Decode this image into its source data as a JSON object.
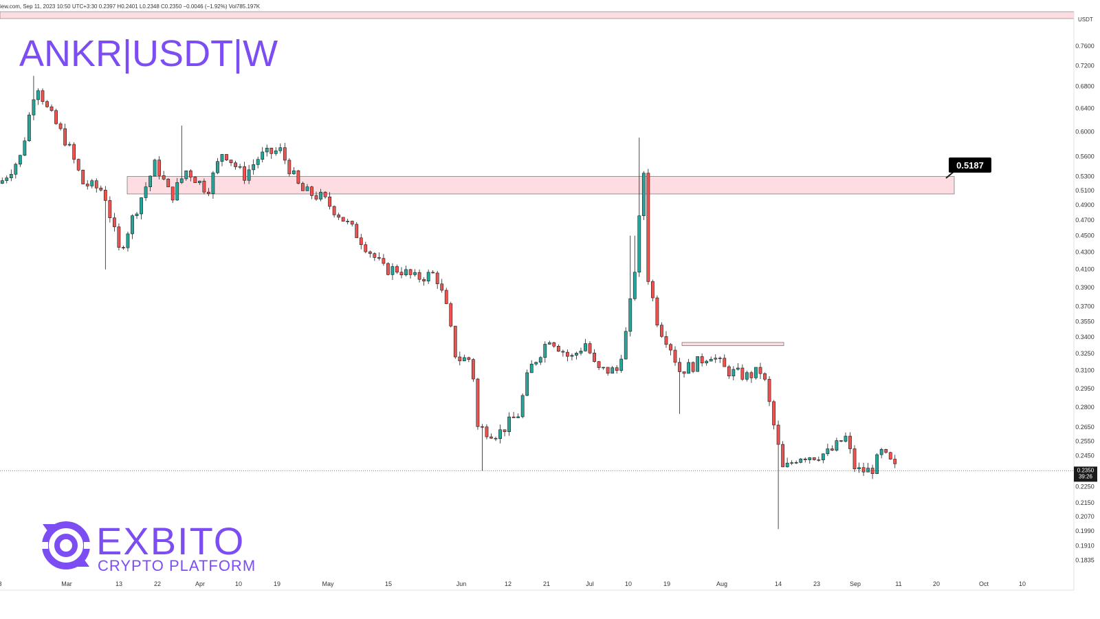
{
  "header": {
    "info_line": "iew.com, Sep 11, 2023 10:50 UTC+3:30   0.2397  H0.2401  L0.2348  C0.2350  −0.0046 (−1.92%)  Vol785.197K"
  },
  "title": "ANKR|USDT|W",
  "brand": {
    "name": "EXBITO",
    "tagline": "CRYPTO PLATFORM"
  },
  "colors": {
    "bull": "#26a69a",
    "bear": "#ef5350",
    "candle": "#1a1a1a",
    "zone_fill": "#fddde1",
    "zone_stroke": "#555555",
    "accent": "#7b4df2"
  },
  "chart_data": {
    "type": "candlestick",
    "symbol": "ANKR/USDT",
    "unit": "USDT",
    "y_scale": "log",
    "ylim": [
      0.1775,
      0.8
    ],
    "y_ticks": [
      "0.7600",
      "0.7200",
      "0.6800",
      "0.6400",
      "0.6000",
      "0.5600",
      "0.5300",
      "0.5100",
      "0.4900",
      "0.4700",
      "0.4500",
      "0.4300",
      "0.4100",
      "0.3900",
      "0.3700",
      "0.3550",
      "0.3400",
      "0.3250",
      "0.3100",
      "0.2950",
      "0.2800",
      "0.2650",
      "0.2550",
      "0.2450",
      "0.2350",
      "0.2250",
      "0.2150",
      "0.2070",
      "0.1990",
      "0.1910",
      "0.1835"
    ],
    "x_labels": [
      "3",
      "Mar",
      "13",
      "22",
      "Apr",
      "10",
      "19",
      "May",
      "15",
      "Jun",
      "12",
      "21",
      "Jul",
      "10",
      "19",
      "Aug",
      "14",
      "23",
      "Sep",
      "11",
      "20",
      "Oct",
      "10"
    ],
    "last_price": "0.2350",
    "last_price_countdown": "39:26",
    "resistance_zone": {
      "low": 0.505,
      "high": 0.53,
      "label": "0.5187"
    },
    "small_zone": {
      "low": 0.332,
      "high": 0.335
    },
    "price_path": [
      [
        0.0,
        0.52
      ],
      [
        0.02,
        0.56
      ],
      [
        0.035,
        0.69
      ],
      [
        0.045,
        0.64
      ],
      [
        0.065,
        0.58
      ],
      [
        0.08,
        0.52
      ],
      [
        0.1,
        0.51
      ],
      [
        0.115,
        0.43
      ],
      [
        0.13,
        0.48
      ],
      [
        0.15,
        0.55
      ],
      [
        0.165,
        0.5
      ],
      [
        0.18,
        0.54
      ],
      [
        0.2,
        0.51
      ],
      [
        0.215,
        0.57
      ],
      [
        0.235,
        0.53
      ],
      [
        0.25,
        0.56
      ],
      [
        0.27,
        0.57
      ],
      [
        0.29,
        0.51
      ],
      [
        0.31,
        0.5
      ],
      [
        0.325,
        0.48
      ],
      [
        0.345,
        0.45
      ],
      [
        0.37,
        0.41
      ],
      [
        0.385,
        0.41
      ],
      [
        0.4,
        0.4
      ],
      [
        0.42,
        0.405
      ],
      [
        0.43,
        0.37
      ],
      [
        0.44,
        0.32
      ],
      [
        0.455,
        0.32
      ],
      [
        0.46,
        0.265
      ],
      [
        0.48,
        0.26
      ],
      [
        0.5,
        0.275
      ],
      [
        0.51,
        0.31
      ],
      [
        0.53,
        0.34
      ],
      [
        0.55,
        0.32
      ],
      [
        0.565,
        0.335
      ],
      [
        0.575,
        0.31
      ],
      [
        0.595,
        0.31
      ],
      [
        0.605,
        0.35
      ],
      [
        0.615,
        0.44
      ],
      [
        0.62,
        0.56
      ],
      [
        0.625,
        0.4
      ],
      [
        0.635,
        0.35
      ],
      [
        0.645,
        0.335
      ],
      [
        0.655,
        0.31
      ],
      [
        0.67,
        0.315
      ],
      [
        0.685,
        0.325
      ],
      [
        0.7,
        0.31
      ],
      [
        0.72,
        0.305
      ],
      [
        0.735,
        0.31
      ],
      [
        0.745,
        0.27
      ],
      [
        0.755,
        0.235
      ],
      [
        0.77,
        0.245
      ],
      [
        0.785,
        0.245
      ],
      [
        0.8,
        0.247
      ],
      [
        0.815,
        0.258
      ],
      [
        0.825,
        0.235
      ],
      [
        0.84,
        0.235
      ],
      [
        0.85,
        0.247
      ],
      [
        0.865,
        0.235
      ]
    ],
    "spikes": [
      {
        "at": 0.033,
        "high": 0.7
      },
      {
        "at": 0.176,
        "high": 0.61
      },
      {
        "at": 0.618,
        "high": 0.59
      },
      {
        "at": 0.61,
        "high": 0.45
      },
      {
        "at": 0.466,
        "low": 0.235
      },
      {
        "at": 0.751,
        "low": 0.2
      },
      {
        "at": 0.654,
        "low": 0.275
      },
      {
        "at": 0.101,
        "low": 0.41
      }
    ],
    "candle_count": 200,
    "xlabel": "",
    "ylabel": ""
  }
}
